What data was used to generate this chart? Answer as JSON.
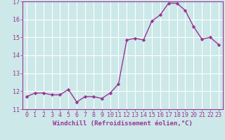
{
  "x": [
    0,
    1,
    2,
    3,
    4,
    5,
    6,
    7,
    8,
    9,
    10,
    11,
    12,
    13,
    14,
    15,
    16,
    17,
    18,
    19,
    20,
    21,
    22,
    23
  ],
  "y": [
    11.7,
    11.9,
    11.9,
    11.8,
    11.8,
    12.1,
    11.4,
    11.7,
    11.7,
    11.6,
    11.9,
    12.4,
    14.85,
    14.95,
    14.85,
    15.9,
    16.25,
    16.9,
    16.9,
    16.5,
    15.6,
    14.9,
    15.0,
    14.6
  ],
  "line_color": "#993399",
  "marker": "D",
  "marker_size": 2.2,
  "line_width": 1.0,
  "bg_color": "#cce8e8",
  "grid_color": "#ffffff",
  "xlabel": "Windchill (Refroidissement éolien,°C)",
  "ylim": [
    11,
    17
  ],
  "xlim": [
    -0.5,
    23.5
  ],
  "yticks": [
    11,
    12,
    13,
    14,
    15,
    16,
    17
  ],
  "xticks": [
    0,
    1,
    2,
    3,
    4,
    5,
    6,
    7,
    8,
    9,
    10,
    11,
    12,
    13,
    14,
    15,
    16,
    17,
    18,
    19,
    20,
    21,
    22,
    23
  ],
  "xlabel_fontsize": 6.5,
  "tick_fontsize": 6.0,
  "label_color": "#993399",
  "spine_color": "#993399"
}
